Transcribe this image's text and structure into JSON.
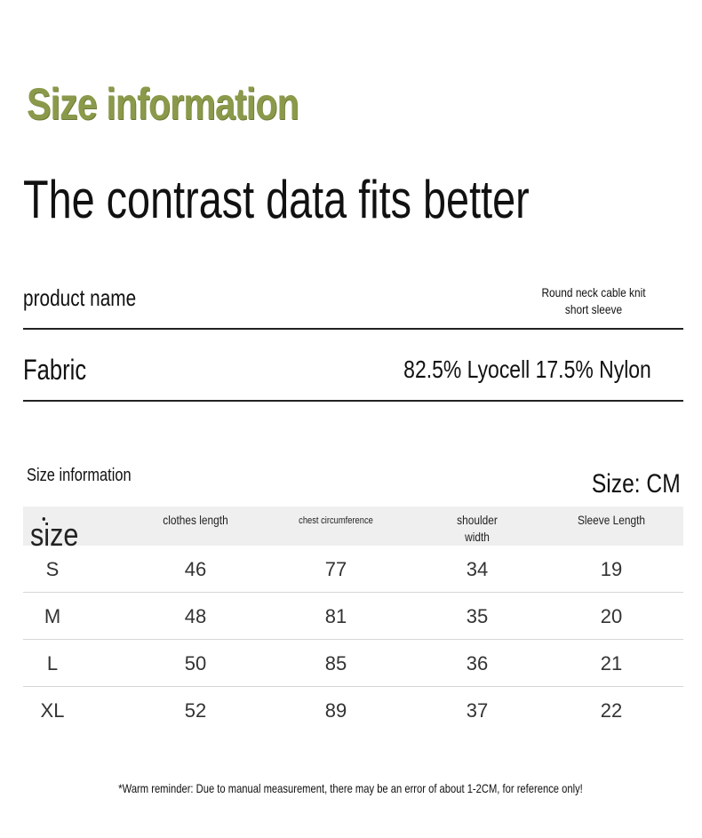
{
  "header": {
    "title": "Size information",
    "subtitle": "The contrast data fits better",
    "title_color": "#8a9a4a"
  },
  "product": {
    "name_label": "product name",
    "name_value": "Round neck cable knit short sleeve",
    "fabric_label": "Fabric",
    "fabric_value": "82.5% Lyocell 17.5% Nylon"
  },
  "size_table": {
    "section_title": "Size information",
    "unit_label": "Size: CM",
    "columns": [
      {
        "label": "size"
      },
      {
        "label": "clothes length"
      },
      {
        "label": "chest circumference"
      },
      {
        "label": "shoulder width"
      },
      {
        "label": "Sleeve Length"
      }
    ],
    "rows": [
      {
        "size": "S",
        "length": "46",
        "chest": "77",
        "shoulder": "34",
        "sleeve": "19"
      },
      {
        "size": "M",
        "length": "48",
        "chest": "81",
        "shoulder": "35",
        "sleeve": "20"
      },
      {
        "size": "L",
        "length": "50",
        "chest": "85",
        "shoulder": "36",
        "sleeve": "21"
      },
      {
        "size": "XL",
        "length": "52",
        "chest": "89",
        "shoulder": "37",
        "sleeve": "22"
      }
    ]
  },
  "footnote": "*Warm reminder: Due to manual measurement, there may be an error of about 1-2CM, for reference only!"
}
